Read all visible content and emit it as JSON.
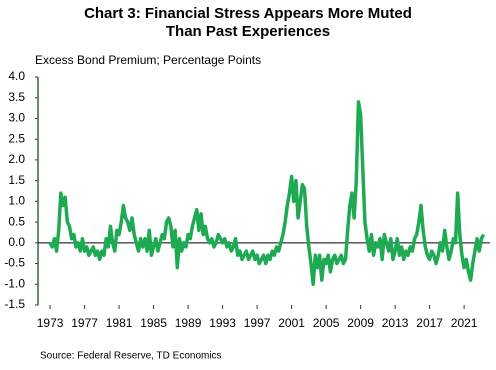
{
  "chart_data": {
    "type": "line",
    "title": [
      "Chart 3: Financial Stress Appears More Muted",
      "Than Past Experiences"
    ],
    "y_label": "Excess Bond Premium; Percentage Points",
    "source": "Source: Federal Reserve, TD Economics",
    "x": [
      1973,
      1973.25,
      1973.5,
      1973.75,
      1974,
      1974.25,
      1974.5,
      1974.75,
      1975,
      1975.25,
      1975.5,
      1975.75,
      1976,
      1976.25,
      1976.5,
      1976.75,
      1977,
      1977.25,
      1977.5,
      1977.75,
      1978,
      1978.25,
      1978.5,
      1978.75,
      1979,
      1979.25,
      1979.5,
      1979.75,
      1980,
      1980.25,
      1980.5,
      1980.75,
      1981,
      1981.25,
      1981.5,
      1981.75,
      1982,
      1982.25,
      1982.5,
      1982.75,
      1983,
      1983.25,
      1983.5,
      1983.75,
      1984,
      1984.25,
      1984.5,
      1984.75,
      1985,
      1985.25,
      1985.5,
      1985.75,
      1986,
      1986.25,
      1986.5,
      1986.75,
      1987,
      1987.25,
      1987.5,
      1987.75,
      1988,
      1988.25,
      1988.5,
      1988.75,
      1989,
      1989.25,
      1989.5,
      1989.75,
      1990,
      1990.25,
      1990.5,
      1990.75,
      1991,
      1991.25,
      1991.5,
      1991.75,
      1992,
      1992.25,
      1992.5,
      1992.75,
      1993,
      1993.25,
      1993.5,
      1993.75,
      1994,
      1994.25,
      1994.5,
      1994.75,
      1995,
      1995.25,
      1995.5,
      1995.75,
      1996,
      1996.25,
      1996.5,
      1996.75,
      1997,
      1997.25,
      1997.5,
      1997.75,
      1998,
      1998.25,
      1998.5,
      1998.75,
      1999,
      1999.25,
      1999.5,
      1999.75,
      2000,
      2000.25,
      2000.5,
      2000.75,
      2001,
      2001.25,
      2001.5,
      2001.75,
      2002,
      2002.25,
      2002.5,
      2002.75,
      2003,
      2003.25,
      2003.5,
      2003.75,
      2004,
      2004.25,
      2004.5,
      2004.75,
      2005,
      2005.25,
      2005.5,
      2005.75,
      2006,
      2006.25,
      2006.5,
      2006.75,
      2007,
      2007.25,
      2007.5,
      2007.75,
      2008,
      2008.25,
      2008.5,
      2008.75,
      2009,
      2009.25,
      2009.5,
      2009.75,
      2010,
      2010.25,
      2010.5,
      2010.75,
      2011,
      2011.25,
      2011.5,
      2011.75,
      2012,
      2012.25,
      2012.5,
      2012.75,
      2013,
      2013.25,
      2013.5,
      2013.75,
      2014,
      2014.25,
      2014.5,
      2014.75,
      2015,
      2015.25,
      2015.5,
      2015.75,
      2016,
      2016.25,
      2016.5,
      2016.75,
      2017,
      2017.25,
      2017.5,
      2017.75,
      2018,
      2018.25,
      2018.5,
      2018.75,
      2019,
      2019.25,
      2019.5,
      2019.75,
      2020,
      2020.25,
      2020.5,
      2020.75,
      2021,
      2021.25,
      2021.5,
      2021.75,
      2022,
      2022.25,
      2022.5,
      2022.75,
      2023,
      2023.25
    ],
    "series": [
      {
        "color": "#1eaa52",
        "values": [
          0.0,
          -0.1,
          0.1,
          -0.2,
          0.3,
          1.2,
          0.9,
          1.1,
          0.5,
          0.4,
          0.1,
          0.2,
          -0.1,
          0.0,
          -0.2,
          0.1,
          -0.2,
          -0.1,
          -0.3,
          -0.2,
          -0.1,
          -0.3,
          -0.2,
          -0.4,
          -0.2,
          -0.3,
          0.1,
          -0.1,
          0.4,
          0.0,
          -0.2,
          0.3,
          0.2,
          0.5,
          0.9,
          0.6,
          0.5,
          0.3,
          0.6,
          0.2,
          0.0,
          -0.2,
          0.1,
          -0.1,
          0.1,
          -0.2,
          0.3,
          -0.3,
          -0.1,
          0.1,
          -0.2,
          0.0,
          0.2,
          0.1,
          0.5,
          0.6,
          0.4,
          -0.1,
          0.3,
          -0.6,
          0.1,
          -0.2,
          0.0,
          -0.1,
          0.2,
          0.1,
          0.4,
          0.6,
          0.8,
          0.3,
          0.7,
          0.2,
          0.4,
          0.1,
          0.0,
          0.1,
          -0.1,
          0.0,
          0.2,
          0.1,
          0.0,
          0.1,
          -0.1,
          0.0,
          -0.2,
          -0.1,
          0.1,
          -0.3,
          -0.2,
          -0.4,
          -0.3,
          -0.2,
          -0.4,
          -0.3,
          -0.2,
          -0.4,
          -0.3,
          -0.5,
          -0.4,
          -0.3,
          -0.5,
          -0.3,
          -0.4,
          -0.2,
          -0.3,
          -0.1,
          -0.2,
          0.0,
          0.2,
          0.5,
          0.9,
          1.2,
          1.6,
          1.0,
          1.5,
          0.6,
          1.0,
          1.4,
          1.3,
          0.4,
          -0.1,
          -0.5,
          -1.0,
          -0.3,
          -0.6,
          -0.3,
          -0.9,
          -0.4,
          -0.5,
          -0.3,
          -0.7,
          -0.4,
          -0.3,
          -0.5,
          -0.4,
          -0.3,
          -0.5,
          -0.4,
          0.3,
          0.9,
          1.2,
          0.6,
          1.5,
          3.4,
          3.1,
          1.8,
          0.5,
          0.1,
          -0.2,
          0.2,
          -0.3,
          0.0,
          -0.1,
          0.1,
          -0.4,
          0.2,
          0.0,
          -0.2,
          0.1,
          -0.4,
          -0.2,
          0.1,
          -0.3,
          -0.1,
          -0.4,
          -0.2,
          -0.3,
          -0.1,
          -0.2,
          0.1,
          0.2,
          0.5,
          0.9,
          0.3,
          -0.1,
          -0.3,
          -0.4,
          -0.2,
          -0.3,
          -0.5,
          -0.3,
          0.0,
          -0.2,
          0.3,
          -0.1,
          -0.4,
          -0.2,
          0.1,
          0.0,
          1.2,
          0.2,
          -0.3,
          -0.6,
          -0.4,
          -0.7,
          -0.9,
          -0.5,
          -0.2,
          0.1,
          -0.2,
          0.1,
          0.2
        ]
      }
    ],
    "xlim": [
      1971.6,
      2024
    ],
    "xticks": [
      1973,
      1977,
      1981,
      1985,
      1989,
      1993,
      1997,
      2001,
      2005,
      2009,
      2013,
      2017,
      2021
    ],
    "ylim": [
      -1.5,
      4
    ],
    "yticks": [
      {
        "value": 4,
        "label": "4.0"
      },
      {
        "value": 3.5,
        "label": "3.5"
      },
      {
        "value": 3,
        "label": "3.0"
      },
      {
        "value": 2.5,
        "label": "2.5"
      },
      {
        "value": 2,
        "label": "2.0"
      },
      {
        "value": 1.5,
        "label": "1.5"
      },
      {
        "value": 1,
        "label": "1.0"
      },
      {
        "value": 0.5,
        "label": "0.5"
      },
      {
        "value": 0,
        "label": "0.0"
      },
      {
        "value": -0.5,
        "label": "-0.5"
      },
      {
        "value": -1,
        "label": "-1.0"
      },
      {
        "value": -1.5,
        "label": "-1.5"
      }
    ],
    "grid": false
  }
}
